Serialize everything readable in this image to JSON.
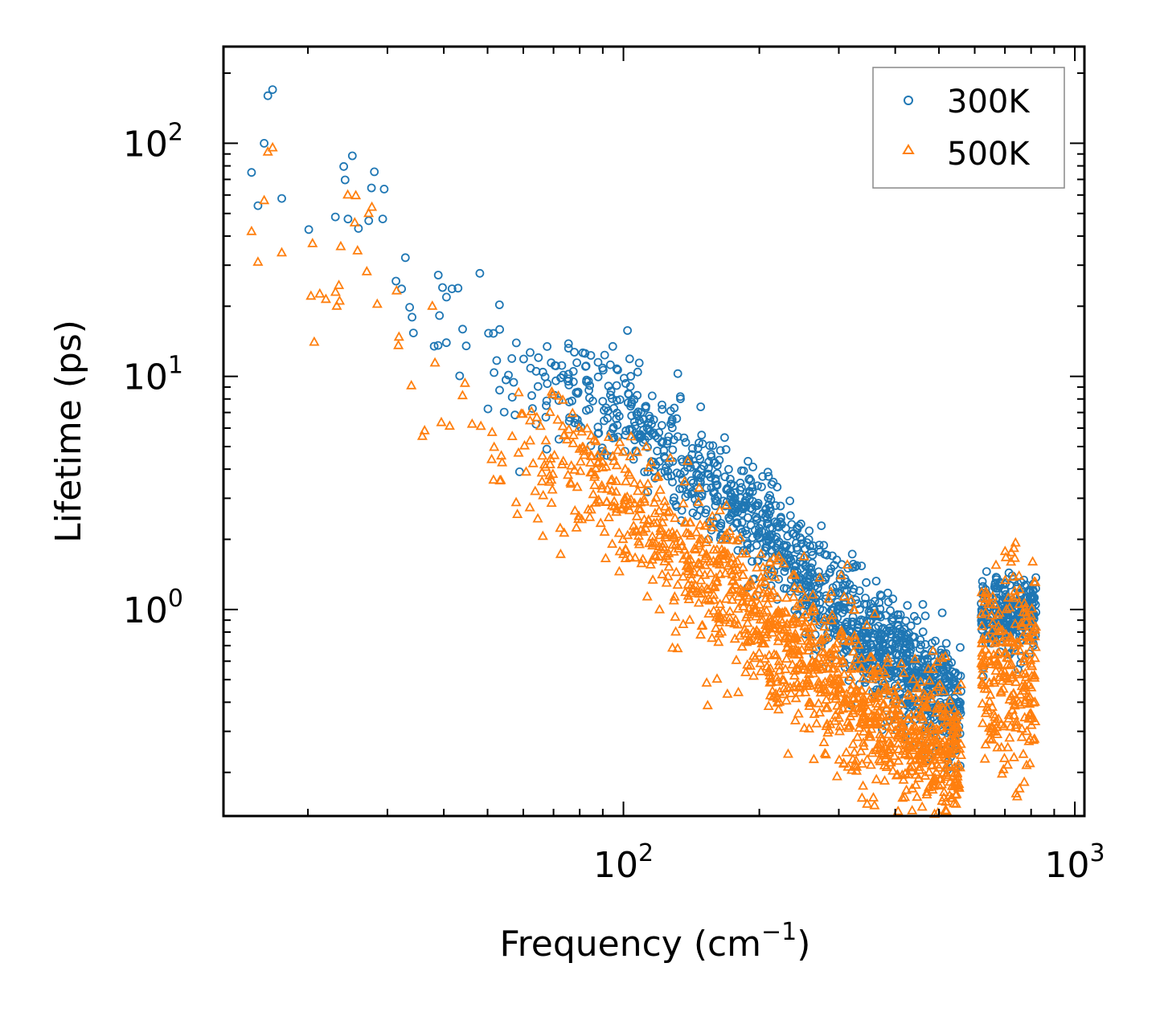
{
  "chart_data": {
    "type": "scatter",
    "title": "",
    "xscale": "log",
    "yscale": "log",
    "xlim": [
      13,
      1050
    ],
    "ylim": [
      0.13,
      260
    ],
    "xlabel": "Frequency (cm",
    "xlabel_sup": "−1",
    "xlabel_end": ")",
    "ylabel": "Lifetime (ps)",
    "x_ticks": [
      {
        "base": "10",
        "exp": "2",
        "value": 100
      },
      {
        "base": "10",
        "exp": "3",
        "value": 1000
      }
    ],
    "y_ticks": [
      {
        "base": "10",
        "exp": "0",
        "value": 1
      },
      {
        "base": "10",
        "exp": "1",
        "value": 10
      },
      {
        "base": "10",
        "exp": "2",
        "value": 100
      }
    ],
    "legend_position": "top-right",
    "series": [
      {
        "name": "300K",
        "label": "300K",
        "marker": "circle",
        "color": "#1f77b4",
        "anchors": [
          [
            15.0,
            75
          ],
          [
            15.5,
            54
          ],
          [
            16.0,
            100
          ],
          [
            16.3,
            160
          ],
          [
            16.7,
            170
          ],
          [
            17.5,
            58
          ],
          [
            22,
            40
          ],
          [
            24,
            62
          ],
          [
            28,
            65
          ],
          [
            30,
            50
          ],
          [
            33,
            25
          ],
          [
            36,
            22
          ],
          [
            40,
            20
          ],
          [
            45,
            15
          ],
          [
            50,
            12
          ],
          [
            60,
            10
          ],
          [
            70,
            9
          ],
          [
            80,
            8.5
          ],
          [
            100,
            7
          ],
          [
            120,
            5
          ],
          [
            150,
            3.5
          ],
          [
            200,
            2.2
          ],
          [
            250,
            1.4
          ],
          [
            300,
            0.95
          ],
          [
            350,
            0.75
          ],
          [
            400,
            0.6
          ],
          [
            450,
            0.5
          ],
          [
            500,
            0.45
          ],
          [
            550,
            0.38
          ]
        ],
        "spread": 0.12,
        "island": {
          "x_range": [
            620,
            820
          ],
          "y_center": 0.95,
          "spread": 0.08
        },
        "n_points": 1300
      },
      {
        "name": "500K",
        "label": "500K",
        "marker": "triangle",
        "color": "#ff7f0e",
        "anchors": [
          [
            15.0,
            42
          ],
          [
            15.5,
            31
          ],
          [
            16.0,
            57
          ],
          [
            16.3,
            92
          ],
          [
            16.7,
            96
          ],
          [
            17.5,
            34
          ],
          [
            22,
            23
          ],
          [
            24,
            36
          ],
          [
            28,
            37
          ],
          [
            30,
            30
          ],
          [
            33,
            15
          ],
          [
            36,
            13
          ],
          [
            40,
            11
          ],
          [
            45,
            8
          ],
          [
            50,
            6
          ],
          [
            60,
            5
          ],
          [
            70,
            4.4
          ],
          [
            80,
            3.8
          ],
          [
            100,
            3.0
          ],
          [
            120,
            2.0
          ],
          [
            150,
            1.4
          ],
          [
            200,
            0.9
          ],
          [
            250,
            0.65
          ],
          [
            300,
            0.45
          ],
          [
            350,
            0.35
          ],
          [
            400,
            0.3
          ],
          [
            450,
            0.27
          ],
          [
            500,
            0.25
          ],
          [
            550,
            0.22
          ]
        ],
        "spread": 0.16,
        "island": {
          "x_range": [
            620,
            820
          ],
          "y_center": 0.55,
          "spread": 0.22
        },
        "n_points": 1300
      }
    ]
  }
}
